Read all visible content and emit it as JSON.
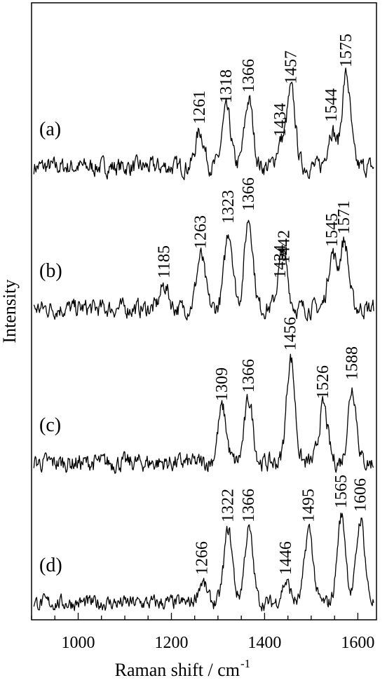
{
  "chart_data": {
    "type": "line",
    "title": "",
    "xlabel": "Raman shift / cm",
    "xlabel_superscript": "-1",
    "ylabel": "Intensity",
    "xlim": [
      900,
      1640
    ],
    "x_ticks": [
      1000,
      1200,
      1400,
      1600
    ],
    "grid": false,
    "legend": "none",
    "series": [
      {
        "name": "(a)",
        "peaks": [
          {
            "x": 1261,
            "h": 0.85
          },
          {
            "x": 1318,
            "h": 1.35
          },
          {
            "x": 1366,
            "h": 1.6
          },
          {
            "x": 1434,
            "h": 0.55
          },
          {
            "x": 1457,
            "h": 1.8
          },
          {
            "x": 1544,
            "h": 0.9
          },
          {
            "x": 1575,
            "h": 2.2
          }
        ],
        "labels": [
          "1261",
          "1318",
          "1366",
          "1434",
          "1457",
          "1544",
          "1575"
        ]
      },
      {
        "name": "(b)",
        "peaks": [
          {
            "x": 1185,
            "h": 0.55
          },
          {
            "x": 1263,
            "h": 1.25
          },
          {
            "x": 1323,
            "h": 1.85
          },
          {
            "x": 1366,
            "h": 2.15
          },
          {
            "x": 1434,
            "h": 0.55
          },
          {
            "x": 1442,
            "h": 0.9
          },
          {
            "x": 1545,
            "h": 1.3
          },
          {
            "x": 1571,
            "h": 1.6
          }
        ],
        "labels": [
          "1185",
          "1263",
          "1323",
          "1366",
          "1434",
          "1442",
          "1545",
          "1571"
        ]
      },
      {
        "name": "(c)",
        "peaks": [
          {
            "x": 1309,
            "h": 1.3
          },
          {
            "x": 1366,
            "h": 1.5
          },
          {
            "x": 1456,
            "h": 2.5
          },
          {
            "x": 1526,
            "h": 1.35
          },
          {
            "x": 1588,
            "h": 1.8
          }
        ],
        "labels": [
          "1309",
          "1366",
          "1456",
          "1526",
          "1588"
        ]
      },
      {
        "name": "(d)",
        "peaks": [
          {
            "x": 1266,
            "h": 0.6
          },
          {
            "x": 1322,
            "h": 2.1
          },
          {
            "x": 1366,
            "h": 2.1
          },
          {
            "x": 1446,
            "h": 0.6
          },
          {
            "x": 1495,
            "h": 2.1
          },
          {
            "x": 1565,
            "h": 2.5
          },
          {
            "x": 1606,
            "h": 2.4
          }
        ],
        "labels": [
          "1266",
          "1322",
          "1366",
          "1446",
          "1495",
          "1565",
          "1606"
        ]
      }
    ]
  }
}
